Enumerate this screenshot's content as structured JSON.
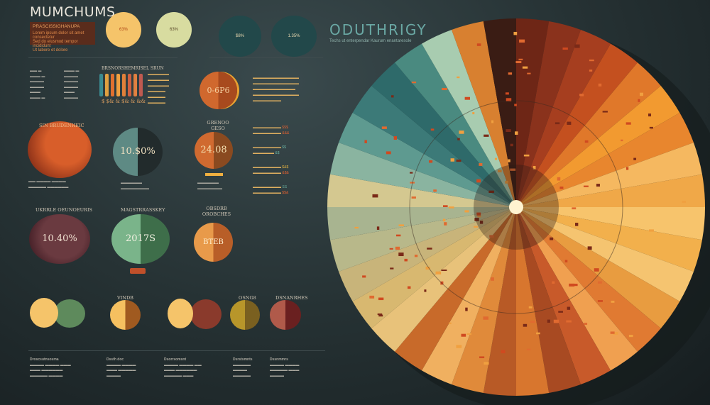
{
  "header": {
    "title": "MUMCHUMS",
    "box_heading": "PRASCISSIGHANUPA",
    "box_text": [
      "Lorem ipsum dolor sit amet consectetur",
      "Sed do eiusmod tempor incididunt",
      "Ut labore et dolore"
    ]
  },
  "right_header": {
    "title": "ODUTHRIGY",
    "subtitle": "Techs ut enterpendar Kaurum enantaresole"
  },
  "top_circles": [
    {
      "label": "63%",
      "color": "#f5c46a"
    },
    {
      "label": "63%",
      "color": "#d8dca0"
    },
    {
      "label": "$8%",
      "color": "#22484a"
    },
    {
      "label": "1.35%",
      "color": "#22484a"
    }
  ],
  "bar_chart": {
    "title": "BRSNORSHEMRISEL SRUN",
    "footer": "$ $& & $& & &&"
  },
  "orange_circle_top": {
    "value": "0-6P6"
  },
  "mid_row": [
    {
      "title": "SIN BRUDENHEIC",
      "value": "",
      "color": "#c25228"
    },
    {
      "title": "",
      "value": "10.$0%",
      "color": "#5e8a84"
    },
    {
      "title": "GRENOO GESO",
      "value": "24.08",
      "color": "#d06a30"
    }
  ],
  "low_row": [
    {
      "title": "UKRRLE OEUNOEURIS",
      "value": "10.40%",
      "color": "#5a3036"
    },
    {
      "title": "MAGSTRRASSKEY",
      "value": "2017S",
      "color": "#6aa87a"
    },
    {
      "title": "OBSDRB OROBCHES",
      "value": "BTEB",
      "color": "#e08a40"
    }
  ],
  "bottom_titles": [
    "VINDB",
    "OSNG8",
    "DSNANRHES"
  ],
  "side_values": [
    "$$$",
    "&&&",
    "$$",
    "&$",
    "$&$",
    "&$&",
    "SS",
    "$$&"
  ],
  "footer_cols": [
    "Droscsutnsosma",
    "Dssth doc",
    "Dsorrsomsnt",
    "Dsrstsmnts",
    "Dssnmmrs"
  ],
  "wheel": {
    "colors": [
      "#6e2616",
      "#8a321c",
      "#a63e1f",
      "#c4501f",
      "#e0782a",
      "#f29a30",
      "#e8862e",
      "#f5b860",
      "#f0a848",
      "#f7c46c",
      "#f2b04c",
      "#f5c470",
      "#e89c40",
      "#e07a32",
      "#f0a050",
      "#c85a2a",
      "#a84a22",
      "#d8762e",
      "#b85a26",
      "#e08a3a",
      "#f0b060",
      "#c86a2a",
      "#e8c27a",
      "#d8b870",
      "#c8b47a",
      "#b8b88a",
      "#a8b490",
      "#d4c890",
      "#8ab4a0",
      "#5e9a90",
      "#3c7a78",
      "#2e6a6a",
      "#4a8a80",
      "#a8ccb0",
      "#d88030",
      "#3a1c14"
    ]
  }
}
